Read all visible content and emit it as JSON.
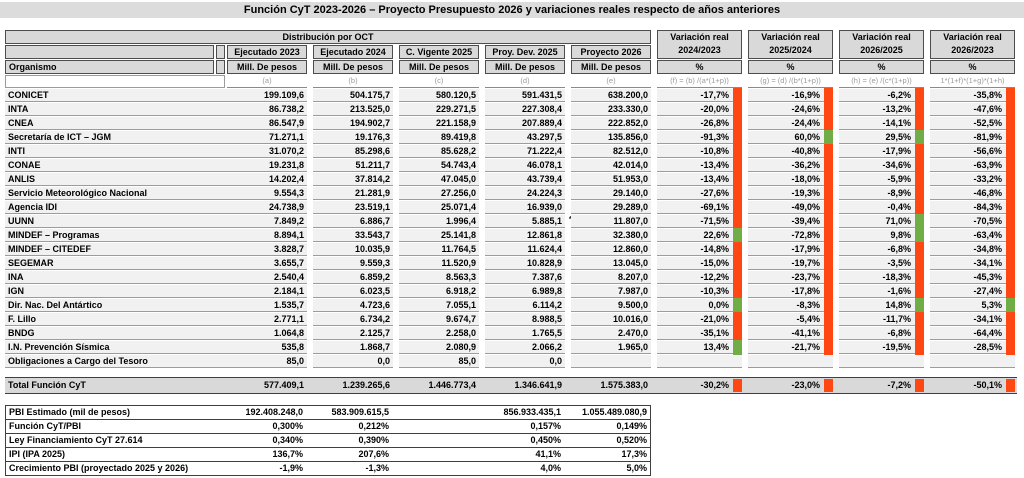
{
  "title": "Función CyT 2023-2026 – Proyecto Presupuesto 2026 y variaciones reales respecto de años anteriores",
  "header": {
    "group_label": "Distribución por OCT",
    "organismo_label": "Organismo",
    "unit_label": "Mill. De pesos",
    "pct_label": "%",
    "value_columns": [
      {
        "label": "Ejecutado 2023",
        "formula": "(a)"
      },
      {
        "label": "Ejecutado 2024",
        "formula": "(b)"
      },
      {
        "label": "C. Vigente 2025",
        "formula": "(c)"
      },
      {
        "label": "Proy. Dev. 2025",
        "formula": "(d)"
      },
      {
        "label": "Proyecto 2026",
        "formula": "(e)"
      }
    ],
    "variation_columns": [
      {
        "label": "Variación real",
        "period": "2024/2023",
        "formula": "(f) = (b) /(a*(1+p))"
      },
      {
        "label": "Variación real",
        "period": "2025/2024",
        "formula": "(g) = (d) /(b*(1+p))"
      },
      {
        "label": "Variación real",
        "period": "2026/2025",
        "formula": "(h) = (e) /(c*(1+p))"
      },
      {
        "label": "Variación real",
        "period": "2026/2023",
        "formula": "1*(1+f)*(1+g)*(1+h)"
      }
    ]
  },
  "rows": [
    {
      "name": "CONICET",
      "values": [
        "199.109,6",
        "504.175,7",
        "580.120,5",
        "591.431,5",
        "638.200,0"
      ],
      "variations": [
        "-17,7%",
        "-16,9%",
        "-6,2%",
        "-35,8%"
      ]
    },
    {
      "name": "INTA",
      "values": [
        "86.738,2",
        "213.525,0",
        "229.271,5",
        "227.308,4",
        "233.330,0"
      ],
      "variations": [
        "-20,0%",
        "-24,6%",
        "-13,2%",
        "-47,6%"
      ]
    },
    {
      "name": "CNEA",
      "values": [
        "86.547,9",
        "194.902,7",
        "221.158,9",
        "207.889,4",
        "222.852,0"
      ],
      "variations": [
        "-26,8%",
        "-24,4%",
        "-14,1%",
        "-52,5%"
      ]
    },
    {
      "name": "Secretaría de ICT – JGM",
      "values": [
        "71.271,1",
        "19.176,3",
        "89.419,8",
        "43.297,5",
        "135.856,0"
      ],
      "variations": [
        "-91,3%",
        "60,0%",
        "29,5%",
        "-81,9%"
      ]
    },
    {
      "name": "INTI",
      "values": [
        "31.070,2",
        "85.298,6",
        "85.628,2",
        "71.222,4",
        "82.512,0"
      ],
      "variations": [
        "-10,8%",
        "-40,8%",
        "-17,9%",
        "-56,6%"
      ]
    },
    {
      "name": "CONAE",
      "values": [
        "19.231,8",
        "51.211,7",
        "54.743,4",
        "46.078,1",
        "42.014,0"
      ],
      "variations": [
        "-13,4%",
        "-36,2%",
        "-34,6%",
        "-63,9%"
      ]
    },
    {
      "name": "ANLIS",
      "values": [
        "14.202,4",
        "37.814,2",
        "47.045,0",
        "43.739,4",
        "51.953,0"
      ],
      "variations": [
        "-13,4%",
        "-18,0%",
        "-5,9%",
        "-33,2%"
      ]
    },
    {
      "name": "Servicio Meteorológico Nacional",
      "values": [
        "9.554,3",
        "21.281,9",
        "27.256,0",
        "24.224,3",
        "29.140,0"
      ],
      "variations": [
        "-27,6%",
        "-19,3%",
        "-8,9%",
        "-46,8%"
      ]
    },
    {
      "name": "Agencia IDI",
      "values": [
        "24.738,9",
        "23.519,1",
        "25.071,4",
        "16.939,0",
        "29.289,0"
      ],
      "variations": [
        "-69,1%",
        "-49,0%",
        "-0,4%",
        "-84,3%"
      ]
    },
    {
      "name": "UUNN",
      "values": [
        "7.849,2",
        "6.886,7",
        "1.996,4",
        "5.885,1",
        "11.807,0"
      ],
      "variations": [
        "-71,5%",
        "-39,4%",
        "71,0%",
        "-70,5%"
      ],
      "note": "*"
    },
    {
      "name": "MINDEF – Programas",
      "values": [
        "8.894,1",
        "33.543,7",
        "25.141,8",
        "12.861,8",
        "32.380,0"
      ],
      "variations": [
        "22,6%",
        "-72,8%",
        "9,8%",
        "-63,4%"
      ]
    },
    {
      "name": "MINDEF – CITEDEF",
      "values": [
        "3.828,7",
        "10.035,9",
        "11.764,5",
        "11.624,4",
        "12.860,0"
      ],
      "variations": [
        "-14,8%",
        "-17,9%",
        "-6,8%",
        "-34,8%"
      ]
    },
    {
      "name": "SEGEMAR",
      "values": [
        "3.655,7",
        "9.559,3",
        "11.520,9",
        "10.828,9",
        "13.045,0"
      ],
      "variations": [
        "-15,0%",
        "-19,7%",
        "-3,5%",
        "-34,1%"
      ]
    },
    {
      "name": "INA",
      "values": [
        "2.540,4",
        "6.859,2",
        "8.563,3",
        "7.387,6",
        "8.207,0"
      ],
      "variations": [
        "-12,2%",
        "-23,7%",
        "-18,3%",
        "-45,3%"
      ]
    },
    {
      "name": "IGN",
      "values": [
        "2.184,1",
        "6.023,5",
        "6.918,2",
        "6.989,8",
        "7.987,0"
      ],
      "variations": [
        "-10,3%",
        "-17,8%",
        "-1,6%",
        "-27,4%"
      ]
    },
    {
      "name": "Dir. Nac. Del Antártico",
      "values": [
        "1.535,7",
        "4.723,6",
        "7.055,1",
        "6.114,2",
        "9.500,0"
      ],
      "variations": [
        "0,0%",
        "-8,3%",
        "14,8%",
        "5,3%"
      ]
    },
    {
      "name": "F. Lillo",
      "values": [
        "2.771,1",
        "6.734,2",
        "9.674,7",
        "8.988,5",
        "10.016,0"
      ],
      "variations": [
        "-21,0%",
        "-5,4%",
        "-11,7%",
        "-34,1%"
      ]
    },
    {
      "name": "BNDG",
      "values": [
        "1.064,8",
        "2.125,7",
        "2.258,0",
        "1.765,5",
        "2.470,0"
      ],
      "variations": [
        "-35,1%",
        "-41,1%",
        "-6,8%",
        "-64,4%"
      ]
    },
    {
      "name": "I.N. Prevención Sísmica",
      "values": [
        "535,8",
        "1.868,7",
        "2.080,9",
        "2.066,2",
        "1.965,0"
      ],
      "variations": [
        "13,4%",
        "-21,7%",
        "-19,5%",
        "-28,5%"
      ]
    },
    {
      "name": "Obligaciones a Cargo del Tesoro",
      "values": [
        "85,0",
        "0,0",
        "85,0",
        "0,0",
        ""
      ],
      "variations": [
        "",
        "",
        "",
        ""
      ]
    }
  ],
  "total": {
    "label": "Total Función CyT",
    "values": [
      "577.409,1",
      "1.239.265,6",
      "1.446.773,4",
      "1.346.641,9",
      "1.575.383,0"
    ],
    "variations": [
      "-30,2%",
      "-23,0%",
      "-7,2%",
      "-50,1%"
    ]
  },
  "bottom_rows": [
    {
      "label": "PBI Estimado (mil de pesos)",
      "values": [
        "192.408.248,0",
        "583.909.615,5",
        "",
        "856.933.435,1",
        "1.055.489.080,9"
      ]
    },
    {
      "label": "Función CyT/PBI",
      "values": [
        "0,300%",
        "0,212%",
        "",
        "0,157%",
        "0,149%"
      ]
    },
    {
      "label": "Ley Financiamiento CyT 27.614",
      "values": [
        "0,340%",
        "0,390%",
        "",
        "0,450%",
        "0,520%"
      ]
    },
    {
      "label": "IPI (IPA 2025)",
      "values": [
        "136,7%",
        "207,6%",
        "",
        "41,1%",
        "17,3%"
      ]
    },
    {
      "label": "Crecimiento PBI (proyectado 2025 y 2026)",
      "values": [
        "-1,9%",
        "-1,3%",
        "",
        "4,0%",
        "5,0%"
      ]
    }
  ],
  "colors": {
    "positive": "#70AD47",
    "negative": "#FF4713",
    "header_bg": "#D9D9D9",
    "row_bg": "#F1F1F1"
  }
}
